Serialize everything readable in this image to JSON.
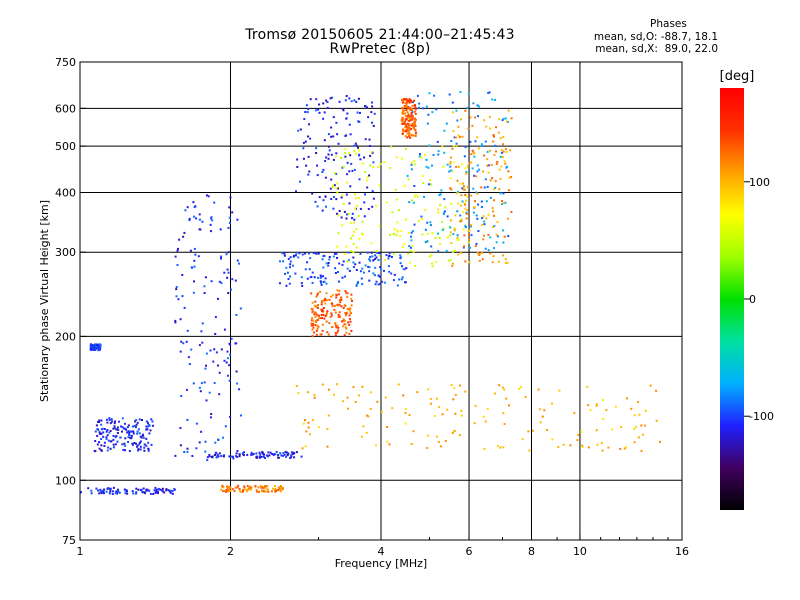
{
  "header": {
    "title": "Tromsø 20150605 21:44:00–21:45:43",
    "subtitle": "RwPretec (8p)"
  },
  "phase_info": {
    "title": "Phases",
    "line_o": "mean, sd,O: -88.7, 18.1",
    "line_x": "mean, sd,X:  89.0, 22.0"
  },
  "chart_data": {
    "type": "scatter",
    "title": "Tromsø 20150605 21:44:00–21:45:43",
    "subtitle": "RwPretec (8p)",
    "xlabel": "Frequency [MHz]",
    "ylabel": "Stationary phase Virtual Height [km]",
    "x_scale": "log",
    "y_scale": "log",
    "xlim": [
      1,
      16
    ],
    "ylim": [
      75,
      750
    ],
    "x_ticks": [
      1,
      2,
      4,
      6,
      8,
      10,
      16
    ],
    "y_ticks": [
      75,
      100,
      200,
      300,
      400,
      500,
      600,
      750
    ],
    "grid_x": [
      2,
      4,
      6,
      8,
      10
    ],
    "grid_y": [
      100,
      200,
      300,
      400,
      500,
      600
    ],
    "colorbar": {
      "label": "[deg]",
      "range": [
        -180,
        180
      ],
      "ticks": [
        100,
        0,
        -100
      ],
      "colors": [
        "#000000",
        "#400060",
        "#2020ff",
        "#00b0ff",
        "#00e0a0",
        "#00e000",
        "#a0ff00",
        "#ffff00",
        "#ffa000",
        "#ff3000",
        "#ff0000"
      ]
    },
    "series": [
      {
        "x_range": [
          1.0,
          1.55
        ],
        "y": 95,
        "phase": -110
      },
      {
        "x_range": [
          1.05,
          1.1
        ],
        "y": 190,
        "phase": -100
      },
      {
        "x_range": [
          1.07,
          1.4
        ],
        "y_range": [
          115,
          135
        ],
        "phase": -110
      },
      {
        "x_range": [
          1.55,
          2.1
        ],
        "y_range": [
          110,
          400
        ],
        "phase": -105
      },
      {
        "x_range": [
          1.9,
          2.55
        ],
        "y": 96,
        "phase": 120
      },
      {
        "x_range": [
          1.8,
          2.8
        ],
        "y": 113,
        "phase": -110
      },
      {
        "x_range": [
          2.5,
          4.5
        ],
        "y_range": [
          255,
          300
        ],
        "phase": -100
      },
      {
        "x_range": [
          2.7,
          3.9
        ],
        "y_range": [
          350,
          640
        ],
        "phase": -110
      },
      {
        "x_range": [
          3.2,
          6.0
        ],
        "y_range": [
          280,
          500
        ],
        "phase": 60
      },
      {
        "x_range": [
          4.5,
          7.2
        ],
        "y_range": [
          300,
          650
        ],
        "phase": -80
      },
      {
        "x_range": [
          5.5,
          7.3
        ],
        "y_range": [
          280,
          600
        ],
        "phase": 110
      },
      {
        "x_range": [
          2.7,
          14.5
        ],
        "y_range": [
          115,
          160
        ],
        "phase": 100
      },
      {
        "x_range": [
          2.9,
          3.5
        ],
        "y_range": [
          200,
          250
        ],
        "phase": 130
      },
      {
        "x_range": [
          4.4,
          4.7
        ],
        "y_range": [
          520,
          630
        ],
        "phase": 130
      }
    ]
  }
}
